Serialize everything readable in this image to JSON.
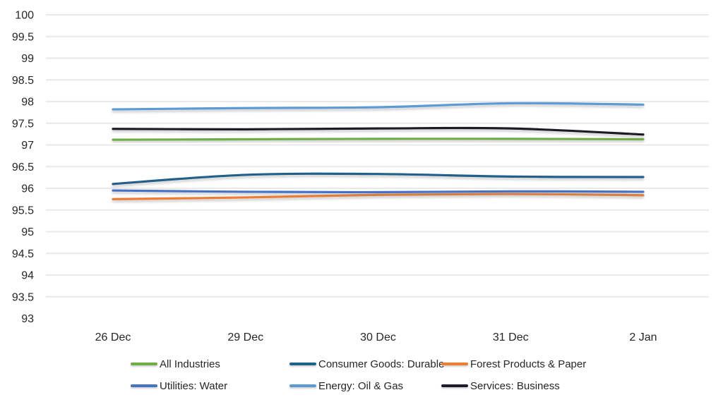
{
  "chart_data": {
    "type": "line",
    "title": "",
    "xlabel": "",
    "ylabel": "",
    "smoothed": true,
    "grid": true,
    "legend_position": "bottom",
    "categories": [
      "26 Dec",
      "29 Dec",
      "30 Dec",
      "31 Dec",
      "2 Jan"
    ],
    "y_axis": {
      "min": 93,
      "max": 100,
      "step": 0.5,
      "tick_labels": [
        "100",
        "99.5",
        "99",
        "98.5",
        "98",
        "97.5",
        "97",
        "96.5",
        "96",
        "95.5",
        "95",
        "94.5",
        "94",
        "93.5",
        "93"
      ]
    },
    "series": [
      {
        "name": "All Industries",
        "color": "#70AD47",
        "values": [
          97.12,
          97.13,
          97.14,
          97.14,
          97.13
        ]
      },
      {
        "name": "Consumer Goods: Durable",
        "color": "#20618A",
        "values": [
          96.1,
          96.31,
          96.33,
          96.27,
          96.26
        ]
      },
      {
        "name": "Forest Products & Paper",
        "color": "#ED7D31",
        "values": [
          95.75,
          95.79,
          95.85,
          95.87,
          95.84
        ]
      },
      {
        "name": "Utilities: Water",
        "color": "#4472C4",
        "values": [
          95.95,
          95.92,
          95.91,
          95.93,
          95.92
        ]
      },
      {
        "name": "Energy: Oil & Gas",
        "color": "#5B9BD5",
        "values": [
          97.82,
          97.85,
          97.87,
          97.96,
          97.93
        ]
      },
      {
        "name": "Services: Business",
        "color": "#1B1C28",
        "values": [
          97.37,
          97.36,
          97.38,
          97.38,
          97.24
        ]
      }
    ],
    "legend_rows": [
      [
        "All Industries",
        "Consumer Goods: Durable",
        "Forest Products & Paper"
      ],
      [
        "Utilities: Water",
        "Energy: Oil & Gas",
        "Services: Business"
      ]
    ],
    "colors": {
      "tick_text": "#262626",
      "gridline": "#e9e9e9"
    }
  }
}
